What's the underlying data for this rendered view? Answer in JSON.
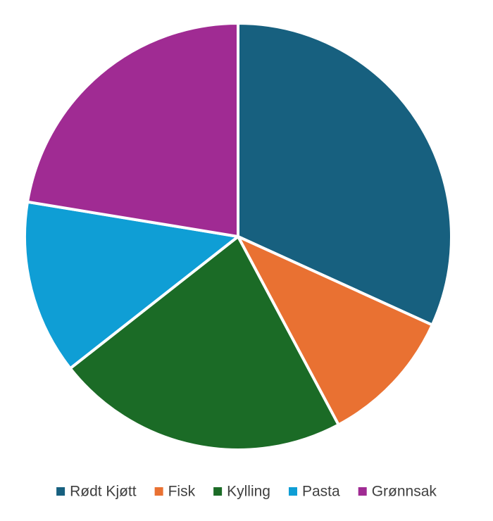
{
  "chart_data": {
    "type": "pie",
    "title": "",
    "legend_position": "bottom",
    "slices": [
      {
        "label": "Rødt Kjøtt",
        "value": 31.8,
        "color": "#17607f"
      },
      {
        "label": "Fisk",
        "value": 10.4,
        "color": "#e97132"
      },
      {
        "label": "Kylling",
        "value": 22.2,
        "color": "#1b6b26"
      },
      {
        "label": "Pasta",
        "value": 13.2,
        "color": "#0f9ed5"
      },
      {
        "label": "Grønnsak",
        "value": 22.4,
        "color": "#a02b93"
      }
    ]
  }
}
